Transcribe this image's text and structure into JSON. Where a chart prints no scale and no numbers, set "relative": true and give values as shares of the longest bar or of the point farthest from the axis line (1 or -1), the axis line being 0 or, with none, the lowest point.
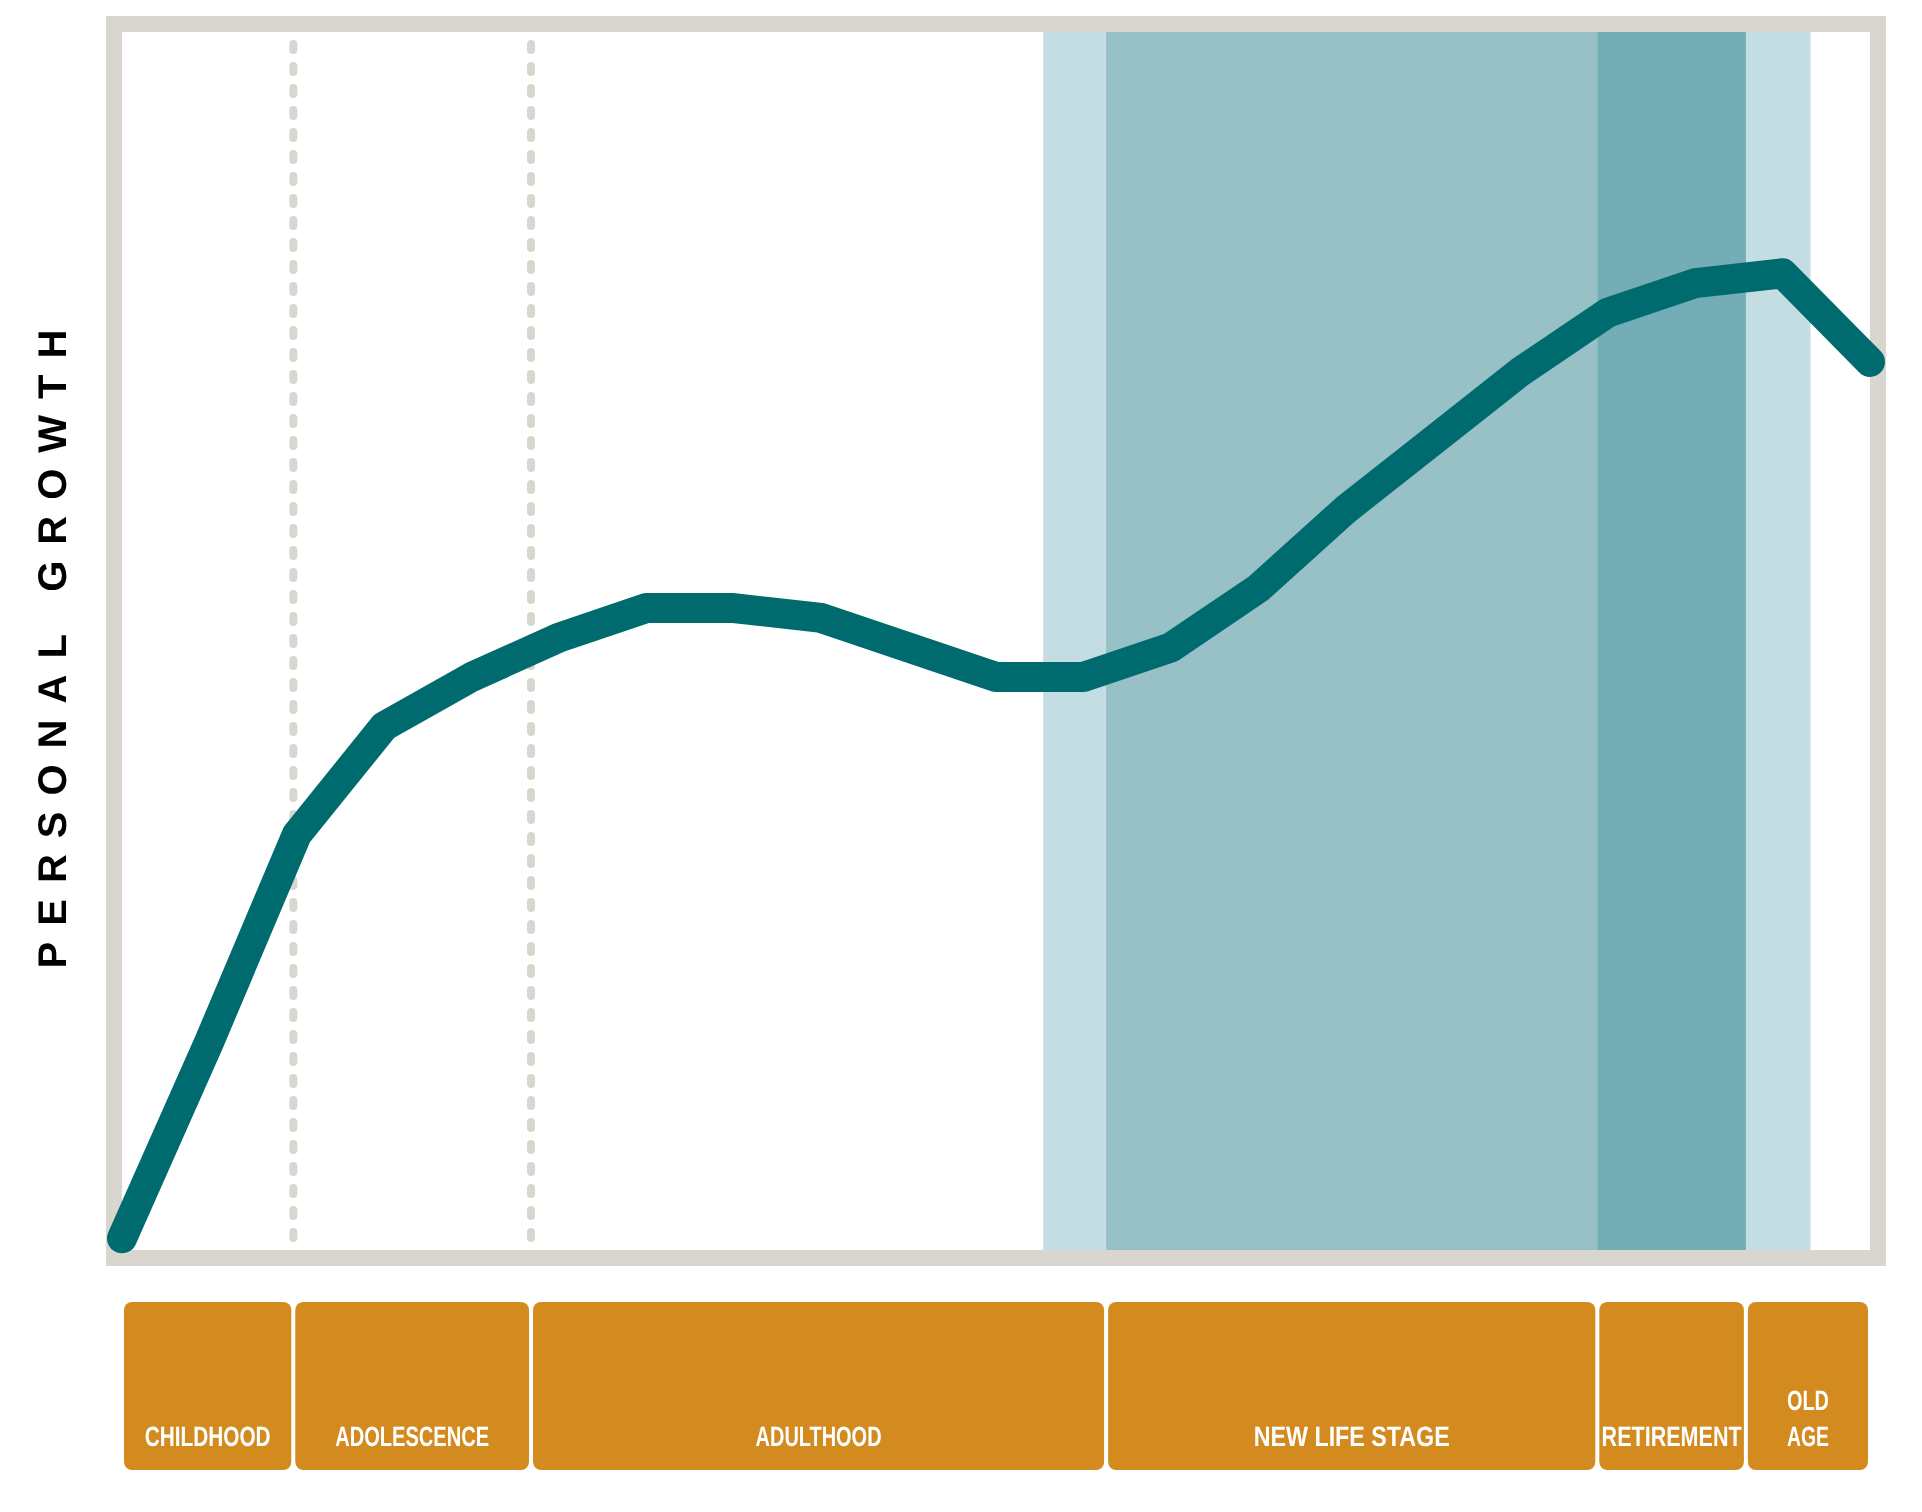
{
  "chart_data": {
    "type": "line",
    "relative": true,
    "ylabel": "PERSONAL GROWTH",
    "tick_labels": false,
    "marker": "none",
    "line_style": "solid",
    "categories": [
      null,
      null,
      null,
      null,
      null,
      null,
      null,
      null,
      null,
      null,
      null,
      null,
      null,
      null,
      null,
      null,
      null,
      null,
      null,
      null,
      null
    ],
    "series": [
      {
        "color": "#006b6e",
        "values": [
          0.02,
          0.22,
          0.43,
          0.54,
          0.59,
          0.63,
          0.66,
          0.66,
          0.65,
          0.62,
          0.59,
          0.59,
          0.62,
          0.68,
          0.76,
          0.83,
          0.9,
          0.96,
          0.99,
          1,
          0.91
        ]
      }
    ],
    "annotations": [
      "CHILDHOOD",
      "ADOLESCENCE",
      "ADULTHOOD",
      "NEW LIFE STAGE",
      "RETIREMENT",
      "OLD AGE"
    ]
  }
}
